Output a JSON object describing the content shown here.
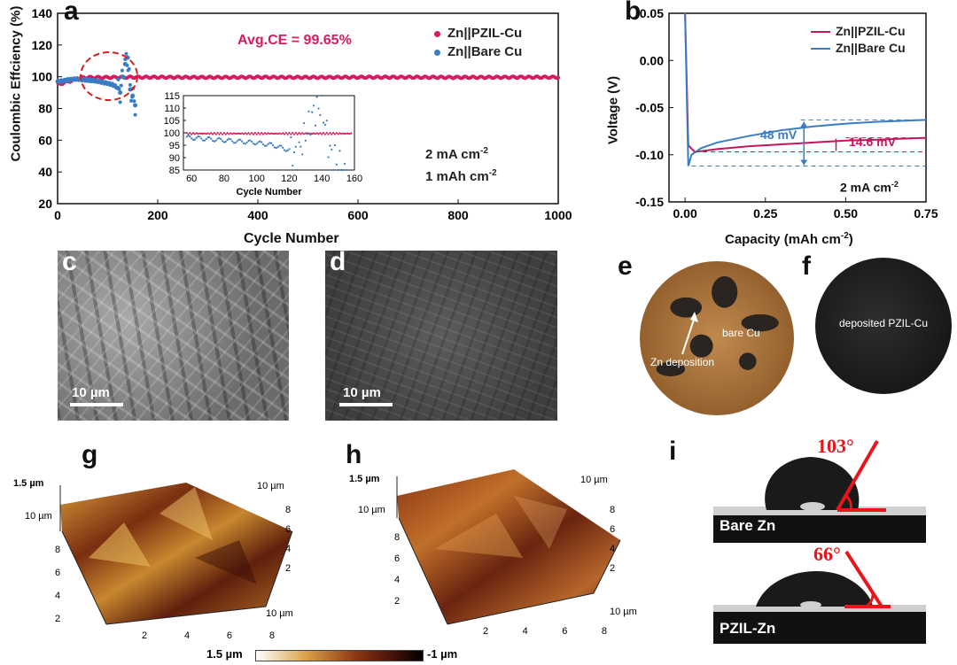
{
  "figure": {
    "panel_labels": {
      "a": "a",
      "b": "b",
      "c": "c",
      "d": "d",
      "e": "e",
      "f": "f",
      "g": "g",
      "h": "h",
      "i": "i"
    },
    "colors": {
      "pzil": "#d81b60",
      "bare": "#3a7cc4",
      "text_pink": "#d81b60",
      "text_blue": "#3a7cc4",
      "contact_red": "#e8151b"
    }
  },
  "panel_a": {
    "annotation_ce": "Avg.CE = 99.65%",
    "annotation_current": "2 mA cm",
    "annotation_current_sup": "-2",
    "annotation_capacity": "1 mAh cm",
    "annotation_capacity_sup": "-2",
    "inset_xlabel": "Cycle Number",
    "inset_yticks": [
      "115",
      "110",
      "105",
      "100",
      "95",
      "90",
      "85"
    ],
    "inset_xticks": [
      "60",
      "80",
      "100",
      "120",
      "140",
      "160"
    ]
  },
  "panel_b": {
    "annotation_48": "48 mV",
    "annotation_146": "14.6 mV",
    "annotation_current": "2 mA cm",
    "annotation_current_sup": "-2"
  },
  "chart_data": [
    {
      "type": "scatter",
      "xlabel": "Cycle Number",
      "ylabel": "Coulombic Effciency (%)",
      "xlim": [
        0,
        1000
      ],
      "ylim": [
        20,
        140
      ],
      "xticks": [
        "0",
        "200",
        "400",
        "600",
        "800",
        "1000"
      ],
      "yticks": [
        "20",
        "40",
        "60",
        "80",
        "100",
        "120",
        "140"
      ],
      "legend_position": "top-right",
      "series": [
        {
          "name": "Zn||PZIL-Cu",
          "x": [
            0,
            50,
            100,
            150,
            200,
            300,
            400,
            500,
            600,
            700,
            800,
            900,
            1000
          ],
          "y": [
            95,
            99.5,
            99.6,
            99.7,
            99.7,
            99.6,
            99.7,
            99.6,
            99.7,
            99.7,
            99.6,
            99.7,
            99.7
          ]
        },
        {
          "name": "Zn||Bare Cu",
          "x": [
            0,
            20,
            40,
            60,
            80,
            100,
            110,
            120,
            125,
            130,
            135,
            140,
            145,
            150,
            155
          ],
          "y": [
            97,
            98,
            98.5,
            98,
            97,
            96,
            95,
            93,
            90,
            100,
            108,
            112,
            92,
            88,
            82
          ]
        }
      ]
    },
    {
      "type": "line",
      "xlabel": "Capacity (mAh cm",
      "xlabel_sup": "-2",
      "xlabel_end": ")",
      "ylabel": "Voltage (V)",
      "xlim": [
        -0.05,
        0.75
      ],
      "ylim": [
        -0.15,
        0.05
      ],
      "xticks": [
        "0.00",
        "0.25",
        "0.50",
        "0.75"
      ],
      "yticks": [
        "0.05",
        "0.00",
        "-0.05",
        "-0.10",
        "-0.15"
      ],
      "legend_position": "top-right",
      "series": [
        {
          "name": "Zn||PZIL-Cu",
          "x": [
            0,
            0.01,
            0.03,
            0.1,
            0.2,
            0.3,
            0.4,
            0.5,
            0.6,
            0.75
          ],
          "y": [
            0.05,
            -0.09,
            -0.097,
            -0.094,
            -0.091,
            -0.089,
            -0.087,
            -0.085,
            -0.084,
            -0.082
          ]
        },
        {
          "name": "Zn||Bare Cu",
          "x": [
            0,
            0.01,
            0.02,
            0.05,
            0.1,
            0.2,
            0.3,
            0.4,
            0.5,
            0.6,
            0.75
          ],
          "y": [
            0.05,
            -0.112,
            -0.1,
            -0.093,
            -0.087,
            -0.08,
            -0.074,
            -0.07,
            -0.067,
            -0.065,
            -0.063
          ]
        }
      ]
    }
  ],
  "panel_c": {
    "scale": "10 µm"
  },
  "panel_d": {
    "scale": "10 µm"
  },
  "panel_e": {
    "label_bare": "bare Cu",
    "label_zn": "Zn deposition"
  },
  "panel_f": {
    "label": "deposited PZIL-Cu"
  },
  "panel_g": {
    "z_label": "1.5 µm",
    "y_top": "10 µm",
    "x_end": "10 µm",
    "left_ticks": [
      "8",
      "6",
      "4",
      "2"
    ],
    "bottom_ticks": [
      "2",
      "4",
      "6",
      "8"
    ],
    "right_ticks": [
      "8",
      "6",
      "4",
      "2"
    ]
  },
  "panel_h": {
    "z_label": "1.5 µm",
    "y_top": "10 µm",
    "x_end": "10 µm",
    "left_ticks": [
      "8",
      "6",
      "4",
      "2"
    ],
    "bottom_ticks": [
      "2",
      "4",
      "6",
      "8"
    ],
    "right_ticks": [
      "8",
      "6",
      "4",
      "2"
    ]
  },
  "colorbar": {
    "max": "1.5 µm",
    "min": "-1 µm"
  },
  "panel_i": {
    "angle_top": "103°",
    "label_top": "Bare Zn",
    "angle_bottom": "66°",
    "label_bottom": "PZIL-Zn"
  }
}
